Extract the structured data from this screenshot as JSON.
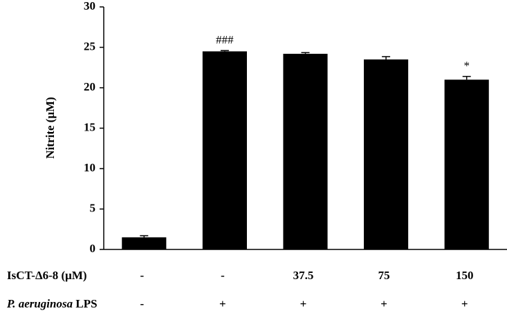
{
  "chart_data": {
    "type": "bar",
    "y_label": "Nitrite (μM)",
    "categories": [
      null,
      null,
      null,
      null,
      null
    ],
    "values": [
      1.5,
      24.5,
      24.2,
      23.5,
      21.0
    ],
    "errors": [
      0.2,
      0.1,
      0.15,
      0.35,
      0.4
    ],
    "bar_labels": [
      null,
      "###",
      null,
      null,
      "*"
    ],
    "color": "#000000",
    "ylim": [
      0,
      30
    ],
    "yticks": [
      0,
      5,
      10,
      15,
      20,
      25,
      30
    ],
    "grid": false,
    "x_rows": [
      {
        "label": [
          "IsCT-Δ6-8 (μM)"
        ],
        "values": [
          "-",
          "-",
          "37.5",
          "75",
          "150"
        ]
      },
      {
        "label": [
          "P. aeruginosa",
          "LPS"
        ],
        "italic": [
          true,
          false
        ],
        "values": [
          "-",
          "+",
          "+",
          "+",
          "+"
        ]
      }
    ]
  }
}
